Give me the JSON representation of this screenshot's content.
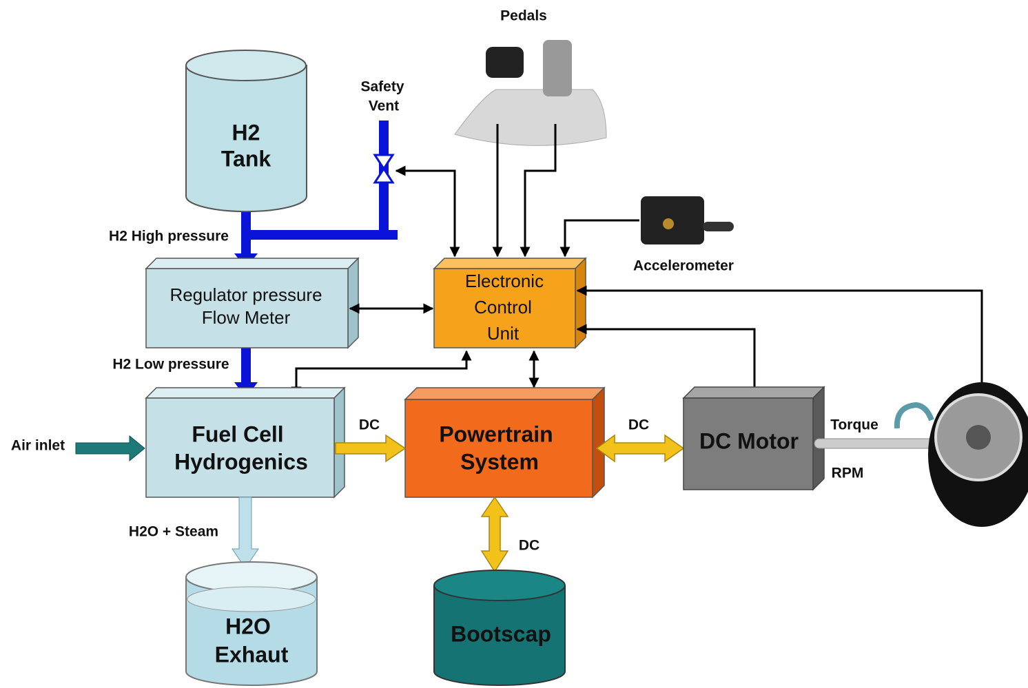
{
  "nodes": {
    "pedals": "Pedals",
    "safety_vent": [
      "Safety",
      "Vent"
    ],
    "h2_tank": [
      "H2",
      "Tank"
    ],
    "regulator": [
      "Regulator pressure",
      "Flow Meter"
    ],
    "ecu": [
      "Electronic",
      "Control",
      "Unit"
    ],
    "accelerometer": "Accelerometer",
    "air_inlet": "Air inlet",
    "fuel_cell": [
      "Fuel Cell",
      "Hydrogenics"
    ],
    "powertrain": [
      "Powertrain",
      "System"
    ],
    "dc_motor": "DC Motor",
    "h2o_exhaust": [
      "H2O",
      "Exhaut"
    ],
    "bootscap": "Bootscap"
  },
  "edge_labels": {
    "h2_high": "H2 High pressure",
    "h2_low": "H2 Low pressure",
    "h2o_steam": "H2O + Steam",
    "dc_fuel_cell": "DC",
    "dc_motor": "DC",
    "dc_bootscap": "DC",
    "torque": "Torque",
    "rpm": "RPM"
  }
}
